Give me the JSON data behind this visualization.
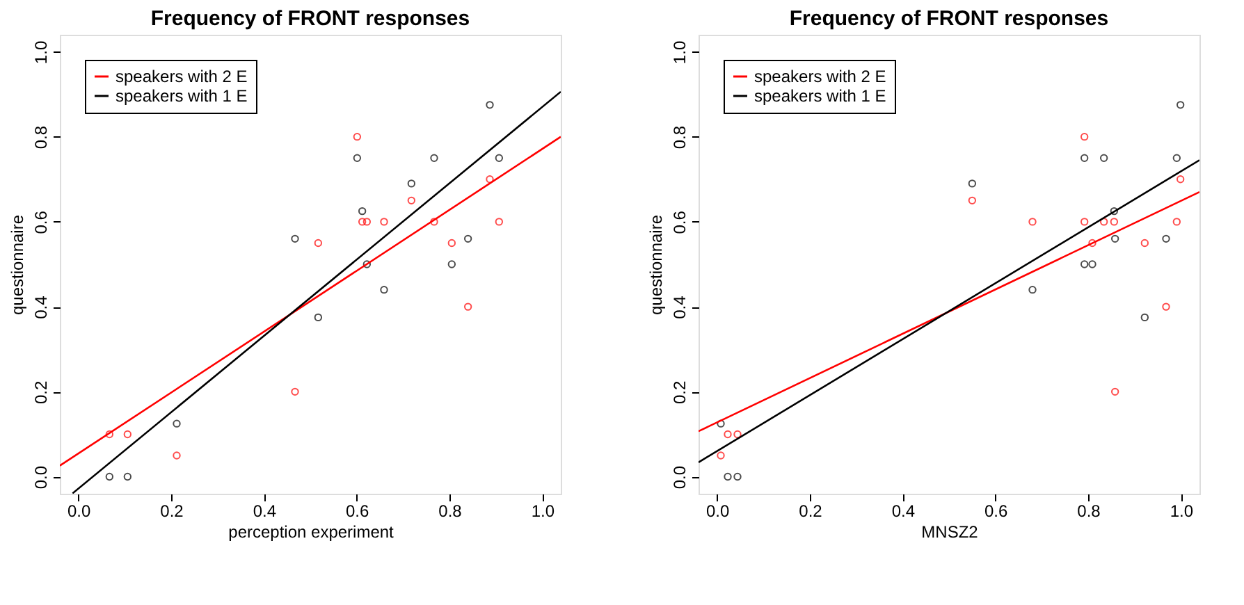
{
  "chart_data": [
    {
      "type": "scatter",
      "title": "Frequency of FRONT responses",
      "xlabel": "perception experiment",
      "ylabel": "questionnaire",
      "xlim": [
        -0.04,
        1.04
      ],
      "ylim": [
        -0.04,
        1.04
      ],
      "xticks": [
        {
          "value": 0,
          "label": "0.0"
        },
        {
          "value": 0.2,
          "label": "0.2"
        },
        {
          "value": 0.4,
          "label": "0.4"
        },
        {
          "value": 0.6,
          "label": "0.6"
        },
        {
          "value": 0.8,
          "label": "0.8"
        },
        {
          "value": 1,
          "label": "1.0"
        }
      ],
      "yticks": [
        {
          "value": 0,
          "label": "0.0"
        },
        {
          "value": 0.2,
          "label": "0.2"
        },
        {
          "value": 0.4,
          "label": "0.4"
        },
        {
          "value": 0.6,
          "label": "0.6"
        },
        {
          "value": 0.8,
          "label": "0.8"
        },
        {
          "value": 1,
          "label": "1.0"
        }
      ],
      "legend": "top left",
      "grid": false,
      "series": [
        {
          "type": "scatter",
          "marker": "circle",
          "color": "#000000",
          "x": [
            0.067,
            0.106,
            0.212,
            0.467,
            0.517,
            0.601,
            0.612,
            0.622,
            0.659,
            0.718,
            0.767,
            0.805,
            0.84,
            0.887,
            0.907
          ],
          "values": [
            0,
            0,
            0.125,
            0.56,
            0.375,
            0.75,
            0.625,
            0.5,
            0.44,
            0.69,
            0.75,
            0.5,
            0.56,
            0.875,
            0.75
          ]
        },
        {
          "type": "scatter",
          "marker": "circle",
          "color": "#ff0000",
          "x": [
            0.067,
            0.106,
            0.212,
            0.467,
            0.517,
            0.601,
            0.612,
            0.622,
            0.659,
            0.718,
            0.767,
            0.805,
            0.84,
            0.887,
            0.907
          ],
          "values": [
            0.1,
            0.1,
            0.05,
            0.2,
            0.55,
            0.8,
            0.6,
            0.6,
            0.6,
            0.65,
            0.6,
            0.55,
            0.4,
            0.7,
            0.6
          ]
        },
        {
          "type": "line",
          "marker": "none",
          "name": "speakers with 2 E",
          "color": "#ff0000",
          "x": [
            -0.04,
            1.04
          ],
          "values": [
            0.026,
            0.8
          ]
        },
        {
          "type": "line",
          "marker": "none",
          "name": "speakers with 1 E",
          "color": "#000000",
          "x": [
            -0.0125,
            1.04
          ],
          "values": [
            -0.039,
            0.906
          ]
        }
      ]
    },
    {
      "type": "scatter",
      "title": "Frequency of FRONT responses",
      "xlabel": "MNSZ2",
      "ylabel": "questionnaire",
      "xlim": [
        -0.04,
        1.04
      ],
      "ylim": [
        -0.04,
        1.04
      ],
      "xticks": [
        {
          "value": 0,
          "label": "0.0"
        },
        {
          "value": 0.2,
          "label": "0.2"
        },
        {
          "value": 0.4,
          "label": "0.4"
        },
        {
          "value": 0.6,
          "label": "0.6"
        },
        {
          "value": 0.8,
          "label": "0.8"
        },
        {
          "value": 1,
          "label": "1.0"
        }
      ],
      "yticks": [
        {
          "value": 0,
          "label": "0.0"
        },
        {
          "value": 0.2,
          "label": "0.2"
        },
        {
          "value": 0.4,
          "label": "0.4"
        },
        {
          "value": 0.6,
          "label": "0.6"
        },
        {
          "value": 0.8,
          "label": "0.8"
        },
        {
          "value": 1,
          "label": "1.0"
        }
      ],
      "legend": "top left",
      "grid": false,
      "series": [
        {
          "type": "scatter",
          "marker": "circle",
          "color": "#000000",
          "x": [
            0.008,
            0.023,
            0.044,
            0.55,
            0.68,
            0.792,
            0.792,
            0.809,
            0.834,
            0.856,
            0.858,
            0.922,
            0.968,
            0.991,
            0.999
          ],
          "values": [
            0.125,
            0,
            0,
            0.69,
            0.44,
            0.75,
            0.5,
            0.5,
            0.75,
            0.625,
            0.56,
            0.375,
            0.56,
            0.75,
            0.875
          ]
        },
        {
          "type": "scatter",
          "marker": "circle",
          "color": "#ff0000",
          "x": [
            0.008,
            0.023,
            0.044,
            0.55,
            0.68,
            0.792,
            0.792,
            0.809,
            0.834,
            0.856,
            0.858,
            0.922,
            0.968,
            0.991,
            0.999
          ],
          "values": [
            0.05,
            0.1,
            0.1,
            0.65,
            0.6,
            0.8,
            0.6,
            0.55,
            0.6,
            0.6,
            0.2,
            0.55,
            0.4,
            0.6,
            0.7
          ]
        },
        {
          "type": "line",
          "marker": "none",
          "name": "speakers with 2 E",
          "color": "#ff0000",
          "x": [
            -0.04,
            1.04
          ],
          "values": [
            0.107,
            0.67
          ]
        },
        {
          "type": "line",
          "marker": "none",
          "name": "speakers with 1 E",
          "color": "#000000",
          "x": [
            -0.04,
            1.04
          ],
          "values": [
            0.034,
            0.745
          ]
        }
      ]
    }
  ]
}
